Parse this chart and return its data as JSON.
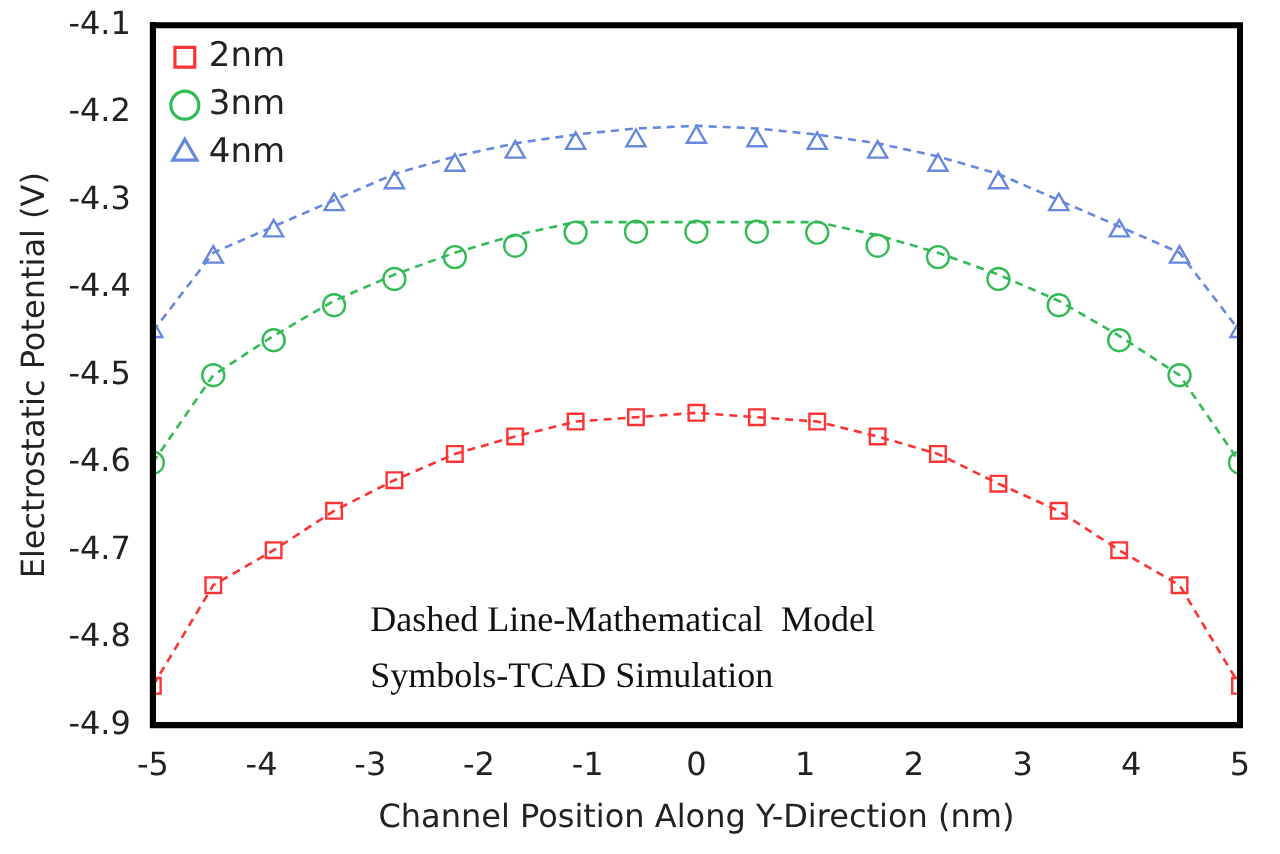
{
  "chart_data": {
    "type": "scatter",
    "xlabel": "Channel Position Along Y-Direction (nm)",
    "ylabel": "Electrostatic Potential (V)",
    "annotations": [
      "Dashed Line-Mathematical  Model",
      "Symbols-TCAD Simulation"
    ],
    "x": [
      -5,
      -4.444,
      -3.889,
      -3.333,
      -2.778,
      -2.222,
      -1.667,
      -1.111,
      -0.556,
      0,
      0.556,
      1.111,
      1.667,
      2.222,
      2.778,
      3.333,
      3.889,
      4.444,
      5
    ],
    "xlim": [
      -5,
      5
    ],
    "xticks": [
      -5,
      -4,
      -3,
      -2,
      -1,
      0,
      1,
      2,
      3,
      4,
      5
    ],
    "ylim": [
      -4.9,
      -4.1
    ],
    "yticks": [
      -4.9,
      -4.8,
      -4.7,
      -4.6,
      -4.5,
      -4.4,
      -4.3,
      -4.2,
      -4.1
    ],
    "grid": false,
    "legend": "top left",
    "series": [
      {
        "type": "scatter",
        "name": "2nm",
        "color": "#ff3333",
        "marker": "square",
        "values": [
          -4.855,
          -4.74,
          -4.7,
          -4.655,
          -4.62,
          -4.59,
          -4.57,
          -4.553,
          -4.548,
          -4.543,
          -4.548,
          -4.553,
          -4.57,
          -4.59,
          -4.624,
          -4.655,
          -4.7,
          -4.74,
          -4.855
        ]
      },
      {
        "type": "scatter",
        "name": "3nm",
        "color": "#33bb55",
        "marker": "circle",
        "values": [
          -4.6,
          -4.5,
          -4.46,
          -4.42,
          -4.39,
          -4.365,
          -4.352,
          -4.337,
          -4.336,
          -4.336,
          -4.336,
          -4.337,
          -4.352,
          -4.365,
          -4.39,
          -4.42,
          -4.46,
          -4.5,
          -4.6
        ]
      },
      {
        "type": "scatter",
        "name": "4nm",
        "color": "#6688dd",
        "marker": "triangle",
        "values": [
          -4.45,
          -4.365,
          -4.335,
          -4.305,
          -4.28,
          -4.26,
          -4.245,
          -4.235,
          -4.232,
          -4.228,
          -4.232,
          -4.235,
          -4.245,
          -4.26,
          -4.28,
          -4.305,
          -4.335,
          -4.365,
          -4.45
        ]
      },
      {
        "type": "line",
        "color": "#ff3333",
        "marker": "none",
        "line_style": "dashed",
        "values": [
          -4.855,
          -4.74,
          -4.7,
          -4.655,
          -4.62,
          -4.59,
          -4.57,
          -4.553,
          -4.548,
          -4.543,
          -4.548,
          -4.553,
          -4.57,
          -4.59,
          -4.624,
          -4.655,
          -4.7,
          -4.74,
          -4.855
        ]
      },
      {
        "type": "line",
        "color": "#33bb55",
        "marker": "none",
        "line_style": "dashed",
        "values": [
          -4.6,
          -4.5,
          -4.455,
          -4.415,
          -4.385,
          -4.36,
          -4.34,
          -4.325,
          -4.325,
          -4.325,
          -4.325,
          -4.325,
          -4.34,
          -4.36,
          -4.385,
          -4.415,
          -4.455,
          -4.5,
          -4.6
        ]
      },
      {
        "type": "line",
        "color": "#6688dd",
        "marker": "none",
        "line_style": "dashed",
        "values": [
          -4.45,
          -4.36,
          -4.33,
          -4.3,
          -4.27,
          -4.25,
          -4.235,
          -4.225,
          -4.218,
          -4.215,
          -4.218,
          -4.225,
          -4.235,
          -4.25,
          -4.27,
          -4.3,
          -4.33,
          -4.36,
          -4.45
        ]
      }
    ]
  }
}
